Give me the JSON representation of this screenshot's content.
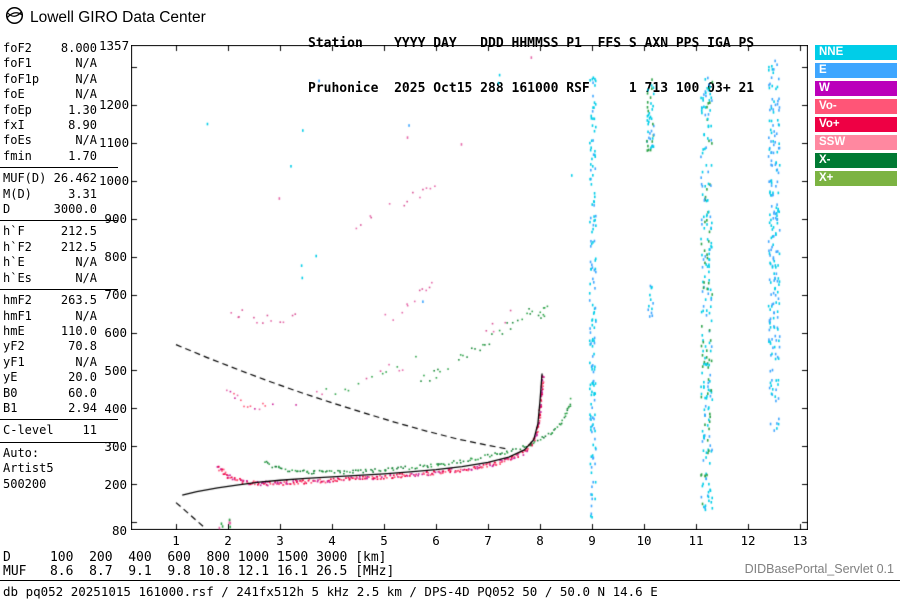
{
  "header": {
    "brand": "Lowell GIRO Data Center",
    "station_line1": "Station    YYYY DAY   DDD HHMMSS P1  FFS S AXN PPS IGA PS",
    "station_line2": "Pruhonice  2025 Oct15 288 161000 RSF     1 713 100 03+ 21"
  },
  "sidebar": {
    "groups": [
      {
        "rows": [
          [
            "foF2",
            "8.000"
          ],
          [
            "foF1",
            "N/A"
          ],
          [
            "foF1p",
            "N/A"
          ],
          [
            "foE",
            "N/A"
          ],
          [
            "foEp",
            "1.30"
          ],
          [
            "fxI",
            "8.90"
          ],
          [
            "foEs",
            "N/A"
          ],
          [
            "fmin",
            "1.70"
          ]
        ]
      },
      {
        "rows": [
          [
            "MUF(D)",
            "26.462"
          ],
          [
            "M(D)",
            "3.31"
          ],
          [
            "D",
            "3000.0"
          ]
        ]
      },
      {
        "rows": [
          [
            "h`F",
            "212.5"
          ],
          [
            "h`F2",
            "212.5"
          ],
          [
            "h`E",
            "N/A"
          ],
          [
            "h`Es",
            "N/A"
          ]
        ]
      },
      {
        "rows": [
          [
            "hmF2",
            "263.5"
          ],
          [
            "hmF1",
            "N/A"
          ],
          [
            "hmE",
            "110.0"
          ],
          [
            "yF2",
            "70.8"
          ],
          [
            "yF1",
            "N/A"
          ],
          [
            "yE",
            "20.0"
          ],
          [
            "B0",
            "60.0"
          ],
          [
            "B1",
            "2.94"
          ]
        ]
      },
      {
        "rows": [
          [
            "C-level",
            "11"
          ]
        ]
      },
      {
        "rows": [
          [
            "Auto:",
            ""
          ],
          [
            "Artist5",
            ""
          ],
          [
            "500200",
            ""
          ]
        ]
      }
    ]
  },
  "legend": {
    "items": [
      {
        "key": "nne",
        "label": "NNE",
        "color": "#00cde8"
      },
      {
        "key": "e",
        "label": "E",
        "color": "#3ea6ff"
      },
      {
        "key": "w",
        "label": "W",
        "color": "#bb00bb"
      },
      {
        "key": "vo-minus",
        "label": "Vo-",
        "color": "#ff5577"
      },
      {
        "key": "vo-plus",
        "label": "Vo+",
        "color": "#ee0044"
      },
      {
        "key": "ssw",
        "label": "SSW",
        "color": "#ff88a0"
      },
      {
        "key": "x-minus",
        "label": "X-",
        "color": "#007a33"
      },
      {
        "key": "x-plus",
        "label": "X+",
        "color": "#7cb342"
      }
    ]
  },
  "footer": {
    "d_line": "D     100  200  400  600  800 1000 1500 3000 [km]",
    "muf_line": "MUF   8.6  8.7  9.1  9.8 10.8 12.1 16.1 26.5 [MHz]",
    "servlet": "DIDBasePortal_Servlet 0.1",
    "status": "db pq052 20251015 161000.rsf / 241fx512h 5 kHz 2.5 km / DPS-4D PQ052 50 / 50.0 N 14.6 E"
  },
  "chart_data": {
    "type": "scatter",
    "title": "Pruhonice ionogram 2025 Oct15 288 161000 RSF",
    "xlabel": "[MHz]",
    "ylabel": "[km]",
    "xlim": [
      1,
      13
    ],
    "ylim": [
      80,
      1357
    ],
    "grid": false,
    "x_ticks": [
      1,
      2,
      3,
      4,
      5,
      6,
      7,
      8,
      9,
      10,
      11,
      12,
      13
    ],
    "y_tick_labels": [
      1357,
      1200,
      1100,
      1000,
      900,
      800,
      700,
      600,
      500,
      400,
      300,
      200,
      80
    ],
    "traces": [
      {
        "name": "o-trace-f-layer",
        "colors": [
          "#ee0044",
          "#cc2299",
          "#ff5577"
        ],
        "step": 2,
        "density": 1.8,
        "jitter": 2.2,
        "size": 1.7,
        "points": [
          [
            1.78,
            250
          ],
          [
            1.85,
            240
          ],
          [
            1.95,
            228
          ],
          [
            2.05,
            219
          ],
          [
            2.2,
            212
          ],
          [
            2.4,
            207
          ],
          [
            2.6,
            205
          ],
          [
            2.85,
            204
          ],
          [
            3.1,
            206
          ],
          [
            3.4,
            209
          ],
          [
            3.8,
            212
          ],
          [
            4.2,
            215
          ],
          [
            4.6,
            218
          ],
          [
            5.0,
            222
          ],
          [
            5.4,
            226
          ],
          [
            5.8,
            231
          ],
          [
            6.2,
            237
          ],
          [
            6.6,
            244
          ],
          [
            6.95,
            252
          ],
          [
            7.25,
            262
          ],
          [
            7.5,
            274
          ],
          [
            7.7,
            289
          ],
          [
            7.83,
            308
          ],
          [
            7.91,
            332
          ],
          [
            7.96,
            362
          ],
          [
            7.99,
            400
          ],
          [
            8.02,
            445
          ],
          [
            8.04,
            490
          ]
        ]
      },
      {
        "name": "x-trace-f-layer",
        "colors": [
          "#1b8a39",
          "#2da348",
          "#0f7a30"
        ],
        "step": 2.6,
        "density": 1.2,
        "jitter": 1.8,
        "size": 1.6,
        "points": [
          [
            2.68,
            264
          ],
          [
            2.78,
            254
          ],
          [
            2.9,
            247
          ],
          [
            3.1,
            241
          ],
          [
            3.35,
            237
          ],
          [
            3.65,
            234
          ],
          [
            4.0,
            233
          ],
          [
            4.35,
            235
          ],
          [
            4.7,
            238
          ],
          [
            5.05,
            241
          ],
          [
            5.4,
            245
          ],
          [
            5.75,
            250
          ],
          [
            6.1,
            256
          ],
          [
            6.45,
            263
          ],
          [
            6.8,
            271
          ],
          [
            7.15,
            281
          ],
          [
            7.5,
            294
          ],
          [
            7.8,
            308
          ],
          [
            8.05,
            324
          ],
          [
            8.25,
            343
          ],
          [
            8.4,
            365
          ],
          [
            8.5,
            392
          ],
          [
            8.56,
            415
          ],
          [
            8.59,
            428
          ]
        ]
      },
      {
        "name": "o-2nd-hop-flat",
        "colors": [
          "#e567a8",
          "#cc2299",
          "#ff5577"
        ],
        "step": 3,
        "density": 0.65,
        "jitter": 5,
        "size": 1.6,
        "points": [
          [
            1.95,
            442
          ],
          [
            2.1,
            428
          ],
          [
            2.3,
            418
          ],
          [
            2.55,
            412
          ],
          [
            2.8,
            409
          ],
          [
            3.05,
            409
          ],
          [
            3.3,
            412
          ],
          [
            3.55,
            416
          ]
        ]
      },
      {
        "name": "o-3rd-hop-flat",
        "colors": [
          "#e567a8",
          "#d84f94"
        ],
        "step": 3.5,
        "density": 0.5,
        "jitter": 5,
        "size": 1.6,
        "points": [
          [
            2.05,
            664
          ],
          [
            2.2,
            652
          ],
          [
            2.4,
            642
          ],
          [
            2.65,
            636
          ],
          [
            2.9,
            634
          ],
          [
            3.15,
            636
          ],
          [
            3.35,
            640
          ]
        ]
      },
      {
        "name": "multi-hop-rising-low",
        "colors": [
          "#e567a8",
          "#2da348",
          "#d84f94"
        ],
        "step": 3,
        "density": 0.6,
        "jitter": 6,
        "size": 1.6,
        "points": [
          [
            3.5,
            430
          ],
          [
            3.8,
            442
          ],
          [
            4.1,
            455
          ],
          [
            4.4,
            469
          ],
          [
            4.7,
            484
          ],
          [
            5.0,
            500
          ],
          [
            5.3,
            517
          ],
          [
            5.6,
            535
          ]
        ]
      },
      {
        "name": "multi-hop-rising-upper",
        "colors": [
          "#e567a8",
          "#d84f94"
        ],
        "step": 3.5,
        "density": 0.5,
        "jitter": 6,
        "size": 1.6,
        "points": [
          [
            4.25,
            868
          ],
          [
            4.55,
            890
          ],
          [
            4.85,
            912
          ],
          [
            5.15,
            933
          ],
          [
            5.45,
            953
          ],
          [
            5.75,
            972
          ],
          [
            5.98,
            987
          ]
        ]
      },
      {
        "name": "multi-hop-rising-mid",
        "colors": [
          "#e567a8",
          "#d84f94"
        ],
        "step": 4,
        "density": 0.45,
        "jitter": 6,
        "size": 1.6,
        "points": [
          [
            4.95,
            628
          ],
          [
            5.2,
            654
          ],
          [
            5.45,
            680
          ],
          [
            5.7,
            706
          ],
          [
            5.95,
            732
          ]
        ]
      },
      {
        "name": "x-2nd-hop-rising",
        "colors": [
          "#2da348",
          "#1b8a39"
        ],
        "step": 3,
        "density": 0.55,
        "jitter": 6,
        "size": 1.6,
        "points": [
          [
            5.6,
            468
          ],
          [
            5.9,
            489
          ],
          [
            6.2,
            512
          ],
          [
            6.5,
            537
          ],
          [
            6.8,
            564
          ],
          [
            7.1,
            593
          ],
          [
            7.4,
            624
          ],
          [
            7.7,
            656
          ],
          [
            7.92,
            678
          ]
        ]
      },
      {
        "name": "x-2nd-hop-cusp",
        "colors": [
          "#1b8a39",
          "#2da348"
        ],
        "step": 2,
        "density": 1.2,
        "jitter": 5,
        "size": 1.6,
        "points": [
          [
            7.95,
            640
          ],
          [
            8.05,
            655
          ],
          [
            8.12,
            668
          ]
        ]
      },
      {
        "name": "o-2nd-hop-rising",
        "colors": [
          "#e567a8",
          "#d84f94"
        ],
        "step": 4,
        "density": 0.4,
        "jitter": 6,
        "size": 1.6,
        "points": [
          [
            6.9,
            598
          ],
          [
            7.15,
            624
          ],
          [
            7.4,
            652
          ],
          [
            7.6,
            680
          ]
        ]
      }
    ],
    "noise_columns": [
      {
        "name": "rfi-9.0mhz",
        "f": [
          8.94,
          9.06
        ],
        "h": [
          115,
          1275
        ],
        "n": 160,
        "colors": [
          "#00cde8",
          "#3ea6ff",
          "#00cde8"
        ]
      },
      {
        "name": "rfi-10.1mhz-top",
        "f": [
          10.04,
          10.18
        ],
        "h": [
          1080,
          1270
        ],
        "n": 45,
        "colors": [
          "#2da348",
          "#00cde8",
          "#3ea6ff"
        ]
      },
      {
        "name": "rfi-10.1mhz-mid",
        "f": [
          10.05,
          10.16
        ],
        "h": [
          630,
          730
        ],
        "n": 12,
        "colors": [
          "#00cde8",
          "#3ea6ff"
        ]
      },
      {
        "name": "rfi-11.2mhz",
        "f": [
          11.08,
          11.3
        ],
        "h": [
          130,
          1275
        ],
        "n": 240,
        "colors": [
          "#00cde8",
          "#3ea6ff",
          "#00cde8",
          "#2da348"
        ]
      },
      {
        "name": "rfi-12.5mhz",
        "f": [
          12.38,
          12.6
        ],
        "h": [
          560,
          1320
        ],
        "n": 180,
        "colors": [
          "#00cde8",
          "#3ea6ff"
        ]
      },
      {
        "name": "rfi-12.5mhz-low",
        "f": [
          12.4,
          12.58
        ],
        "h": [
          340,
          560
        ],
        "n": 28,
        "colors": [
          "#00cde8",
          "#3ea6ff"
        ]
      },
      {
        "name": "sparse-noise-upper",
        "f": [
          1.45,
          8.6
        ],
        "h": [
          620,
          1340
        ],
        "n": 16,
        "colors": [
          "#3ea6ff",
          "#00cde8",
          "#e567a8"
        ]
      },
      {
        "name": "es-dots-low",
        "f": [
          1.7,
          2.1
        ],
        "h": [
          85,
          112
        ],
        "n": 8,
        "colors": [
          "#e567a8",
          "#2da348"
        ]
      }
    ],
    "lines": [
      {
        "name": "artist-trace-fit",
        "style": "solid",
        "color": "#000000",
        "width": 1.3,
        "points": [
          [
            1.12,
            172
          ],
          [
            1.4,
            181
          ],
          [
            1.8,
            191
          ],
          [
            2.2,
            199
          ],
          [
            2.6,
            206
          ],
          [
            3.0,
            211
          ],
          [
            3.5,
            216
          ],
          [
            4.0,
            220
          ],
          [
            4.5,
            224
          ],
          [
            5.0,
            228
          ],
          [
            5.5,
            233
          ],
          [
            6.0,
            239
          ],
          [
            6.5,
            247
          ],
          [
            7.0,
            258
          ],
          [
            7.4,
            272
          ],
          [
            7.7,
            291
          ],
          [
            7.88,
            318
          ],
          [
            7.96,
            360
          ],
          [
            8.0,
            420
          ],
          [
            8.03,
            475
          ],
          [
            8.04,
            492
          ]
        ]
      },
      {
        "name": "transmission-curve",
        "style": "dashed",
        "color": "#000000",
        "width": 1.2,
        "points": [
          [
            1.0,
            568
          ],
          [
            1.6,
            534
          ],
          [
            2.2,
            502
          ],
          [
            2.8,
            471
          ],
          [
            3.4,
            442
          ],
          [
            4.0,
            415
          ],
          [
            4.6,
            389
          ],
          [
            5.2,
            364
          ],
          [
            5.8,
            341
          ],
          [
            6.4,
            320
          ],
          [
            7.0,
            303
          ],
          [
            7.38,
            293
          ]
        ]
      },
      {
        "name": "transmission-curve-low",
        "style": "dashed",
        "color": "#000000",
        "width": 1.2,
        "points": [
          [
            1.0,
            152
          ],
          [
            1.12,
            138
          ],
          [
            1.26,
            121
          ],
          [
            1.4,
            104
          ],
          [
            1.52,
            90
          ]
        ]
      }
    ]
  }
}
